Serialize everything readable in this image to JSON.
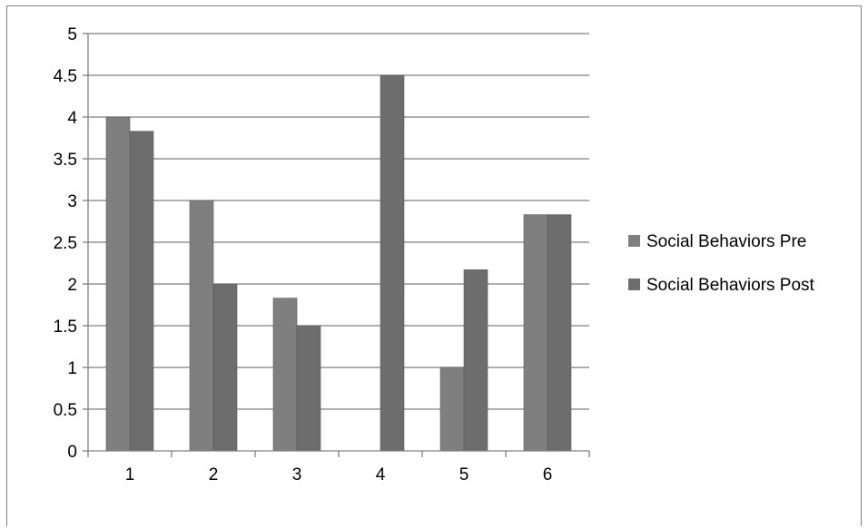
{
  "chart_data": {
    "type": "bar",
    "title": "",
    "xlabel": "",
    "ylabel": "",
    "categories": [
      "1",
      "2",
      "3",
      "4",
      "5",
      "6"
    ],
    "series": [
      {
        "name": "Social Behaviors Pre",
        "values": [
          4,
          3,
          1.83,
          0,
          1,
          2.83
        ]
      },
      {
        "name": "Social Behaviors Post",
        "values": [
          3.83,
          2,
          1.5,
          4.5,
          2.17,
          2.83
        ]
      }
    ],
    "ylim": [
      0,
      5
    ],
    "y_ticks": [
      "0",
      "0.5",
      "1",
      "1.5",
      "2",
      "2.5",
      "3",
      "3.5",
      "4",
      "4.5",
      "5"
    ],
    "grid": true,
    "legend_position": "right",
    "colors": {
      "pre": "#7f7f7f",
      "post": "#6d6d6d",
      "grid": "#7f7f7f",
      "axis": "#7f7f7f"
    }
  }
}
